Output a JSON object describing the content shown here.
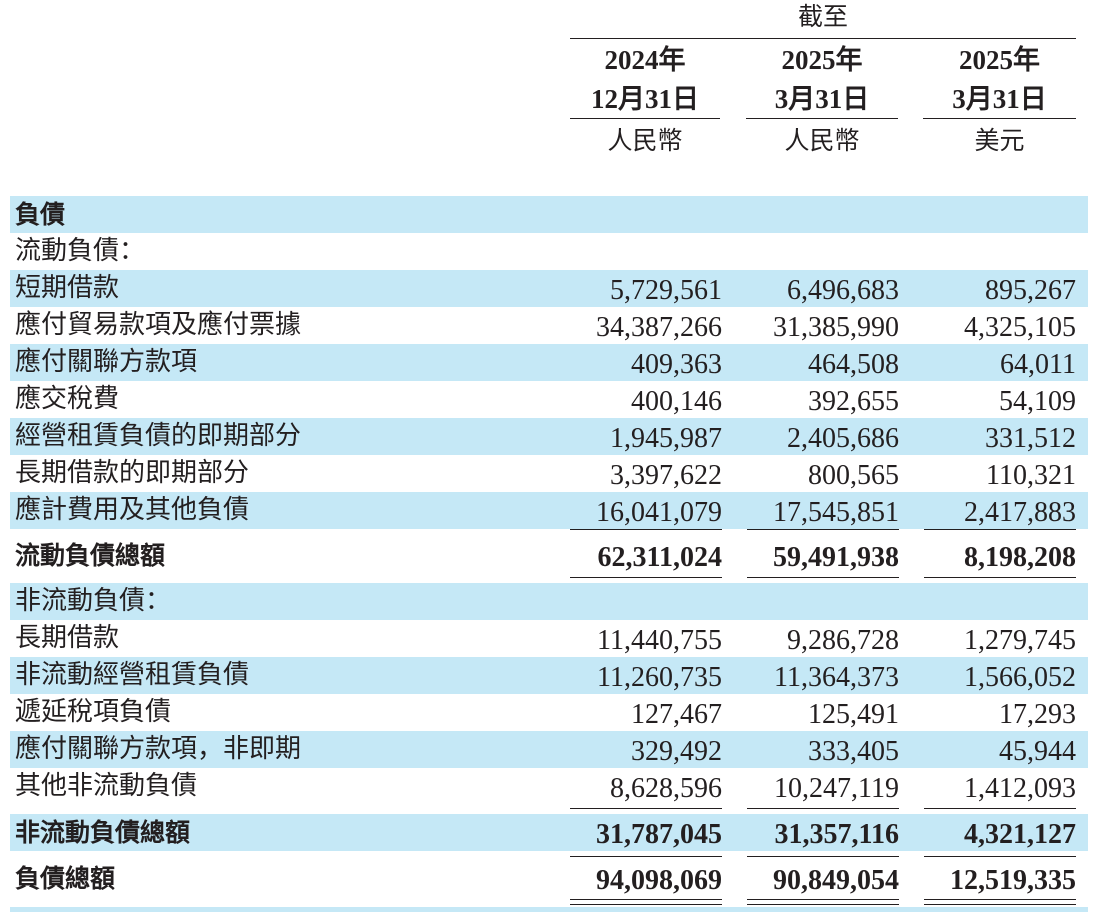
{
  "header": {
    "as_of": "截至",
    "columns": [
      {
        "year": "2024年",
        "date": "12月31日",
        "currency": "人民幣"
      },
      {
        "year": "2025年",
        "date": "3月31日",
        "currency": "人民幣"
      },
      {
        "year": "2025年",
        "date": "3月31日",
        "currency": "美元"
      }
    ]
  },
  "rows": [
    {
      "label": "負債",
      "values": [
        "",
        "",
        ""
      ]
    },
    {
      "label": "流動負債：",
      "values": [
        "",
        "",
        ""
      ]
    },
    {
      "label": "短期借款",
      "values": [
        "5,729,561",
        "6,496,683",
        "895,267"
      ]
    },
    {
      "label": "應付貿易款項及應付票據",
      "values": [
        "34,387,266",
        "31,385,990",
        "4,325,105"
      ]
    },
    {
      "label": "應付關聯方款項",
      "values": [
        "409,363",
        "464,508",
        "64,011"
      ]
    },
    {
      "label": "應交稅費",
      "values": [
        "400,146",
        "392,655",
        "54,109"
      ]
    },
    {
      "label": "經營租賃負債的即期部分",
      "values": [
        "1,945,987",
        "2,405,686",
        "331,512"
      ]
    },
    {
      "label": "長期借款的即期部分",
      "values": [
        "3,397,622",
        "800,565",
        "110,321"
      ]
    },
    {
      "label": "應計費用及其他負債",
      "values": [
        "16,041,079",
        "17,545,851",
        "2,417,883"
      ]
    },
    {
      "label": "流動負債總額",
      "values": [
        "62,311,024",
        "59,491,938",
        "8,198,208"
      ]
    },
    {
      "label": "非流動負債：",
      "values": [
        "",
        "",
        ""
      ]
    },
    {
      "label": "長期借款",
      "values": [
        "11,440,755",
        "9,286,728",
        "1,279,745"
      ]
    },
    {
      "label": "非流動經營租賃負債",
      "values": [
        "11,260,735",
        "11,364,373",
        "1,566,052"
      ]
    },
    {
      "label": "遞延稅項負債",
      "values": [
        "127,467",
        "125,491",
        "17,293"
      ]
    },
    {
      "label": "應付關聯方款項，非即期",
      "values": [
        "329,492",
        "333,405",
        "45,944"
      ]
    },
    {
      "label": "其他非流動負債",
      "values": [
        "8,628,596",
        "10,247,119",
        "1,412,093"
      ]
    },
    {
      "label": "非流動負債總額",
      "values": [
        "31,787,045",
        "31,357,116",
        "4,321,127"
      ]
    },
    {
      "label": "負債總額",
      "values": [
        "94,098,069",
        "90,849,054",
        "12,519,335"
      ]
    }
  ]
}
